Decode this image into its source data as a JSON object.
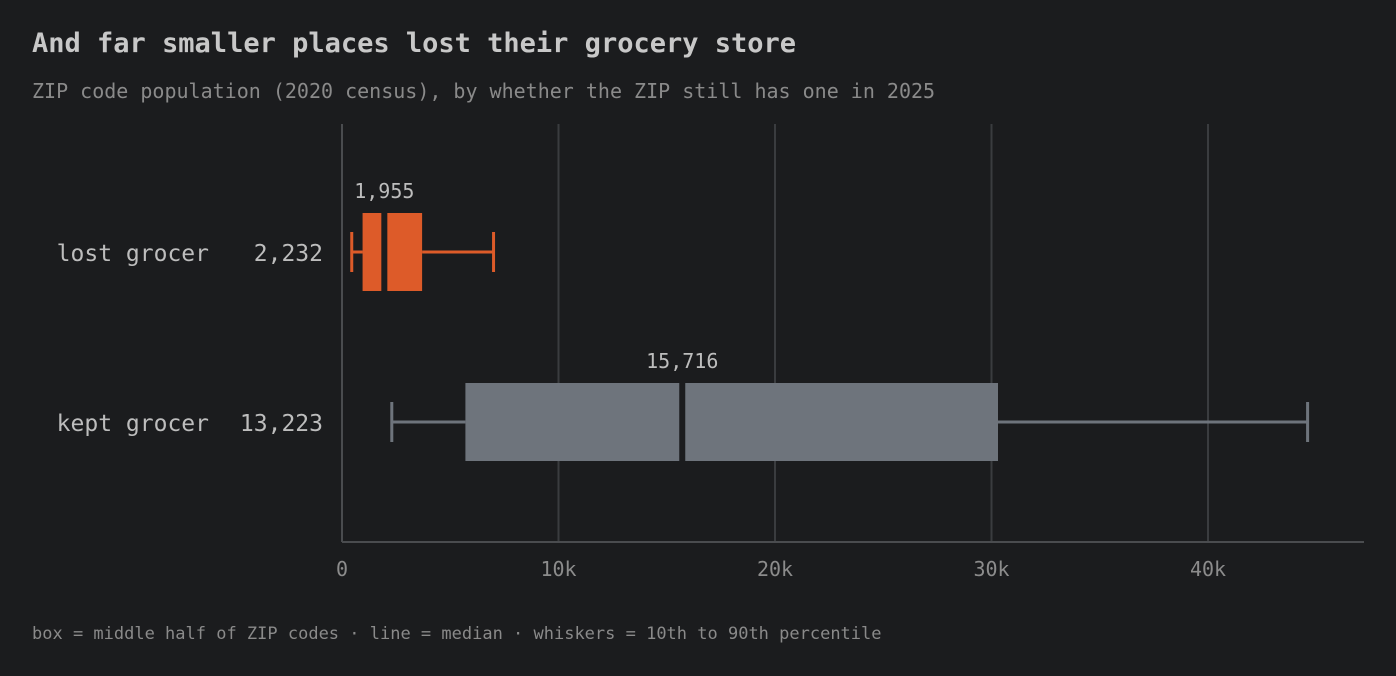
{
  "title": "And far smaller places lost their grocery store",
  "subtitle": "ZIP code population (2020 census), by whether the ZIP still has one in 2025",
  "footnote": "box = middle half of ZIP codes · line = median · whiskers = 10th to 90th percentile",
  "colors": {
    "background": "#1b1c1e",
    "lost": "#dd5b29",
    "kept": "#6e747c",
    "grid": "#3a3c3f",
    "axis": "#4a4c4f",
    "tick_text": "#8c8c8c",
    "label_text": "#bdbdbd"
  },
  "chart_data": {
    "type": "boxplot",
    "orientation": "horizontal",
    "title": "And far smaller places lost their grocery store",
    "subtitle": "ZIP code population (2020 census), by whether the ZIP still has one in 2025",
    "xlim": [
      0,
      47000
    ],
    "xticks": [
      0,
      10000,
      20000,
      30000,
      40000
    ],
    "xtick_labels": [
      "0",
      "10k",
      "20k",
      "30k",
      "40k"
    ],
    "grid": "vertical",
    "series": [
      {
        "name": "lost grocer",
        "count_label": "2,232",
        "median_label": "1,955",
        "p10": 450,
        "q1": 950,
        "median": 1955,
        "q3": 3700,
        "p90": 7000,
        "color": "#dd5b29"
      },
      {
        "name": "kept grocer",
        "count_label": "13,223",
        "median_label": "15,716",
        "p10": 2300,
        "q1": 5700,
        "median": 15716,
        "q3": 30300,
        "p90": 44600,
        "color": "#6e747c"
      }
    ]
  }
}
